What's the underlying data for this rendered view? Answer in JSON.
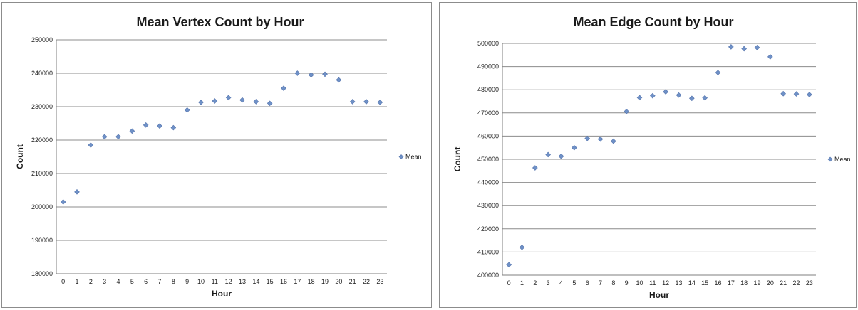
{
  "chart_data": [
    {
      "type": "scatter",
      "title": "Mean Vertex Count by Hour",
      "xlabel": "Hour",
      "ylabel": "Count",
      "x": [
        0,
        1,
        2,
        3,
        4,
        5,
        6,
        7,
        8,
        9,
        10,
        11,
        12,
        13,
        14,
        15,
        16,
        17,
        18,
        19,
        20,
        21,
        22,
        23
      ],
      "xticks": [
        "0",
        "1",
        "2",
        "3",
        "4",
        "5",
        "6",
        "7",
        "8",
        "9",
        "10",
        "11",
        "12",
        "13",
        "14",
        "15",
        "16",
        "17",
        "18",
        "19",
        "20",
        "21",
        "22",
        "23"
      ],
      "series": [
        {
          "name": "Mean",
          "values": [
            201500,
            204500,
            218500,
            221000,
            221000,
            222700,
            224500,
            224200,
            223700,
            229000,
            231300,
            231700,
            232700,
            232000,
            231500,
            231000,
            235500,
            240000,
            239500,
            239700,
            238000,
            231500,
            231500,
            231300
          ]
        }
      ],
      "ylim": [
        180000,
        250000
      ],
      "yticks": [
        "180000",
        "190000",
        "200000",
        "210000",
        "220000",
        "230000",
        "240000",
        "250000"
      ],
      "grid": true,
      "legend_position": "right",
      "marker_color": "#6f91c7"
    },
    {
      "type": "scatter",
      "title": "Mean Edge Count by Hour",
      "xlabel": "Hour",
      "ylabel": "Count",
      "x": [
        0,
        1,
        2,
        3,
        4,
        5,
        6,
        7,
        8,
        9,
        10,
        11,
        12,
        13,
        14,
        15,
        16,
        17,
        18,
        19,
        20,
        21,
        22,
        23
      ],
      "xticks": [
        "0",
        "1",
        "2",
        "3",
        "4",
        "5",
        "6",
        "7",
        "8",
        "9",
        "10",
        "11",
        "12",
        "13",
        "14",
        "15",
        "16",
        "17",
        "18",
        "19",
        "20",
        "21",
        "22",
        "23"
      ],
      "series": [
        {
          "name": "Mean",
          "values": [
            404500,
            412000,
            446300,
            452000,
            451300,
            455000,
            459000,
            458700,
            457800,
            470600,
            476600,
            477400,
            479100,
            477700,
            476300,
            476500,
            487400,
            498500,
            497700,
            498200,
            494200,
            478300,
            478200,
            477900
          ]
        }
      ],
      "ylim": [
        400000,
        500000
      ],
      "yticks": [
        "400000",
        "410000",
        "420000",
        "430000",
        "440000",
        "450000",
        "460000",
        "470000",
        "480000",
        "490000",
        "500000"
      ],
      "grid": true,
      "legend_position": "right",
      "marker_color": "#6f91c7"
    }
  ]
}
